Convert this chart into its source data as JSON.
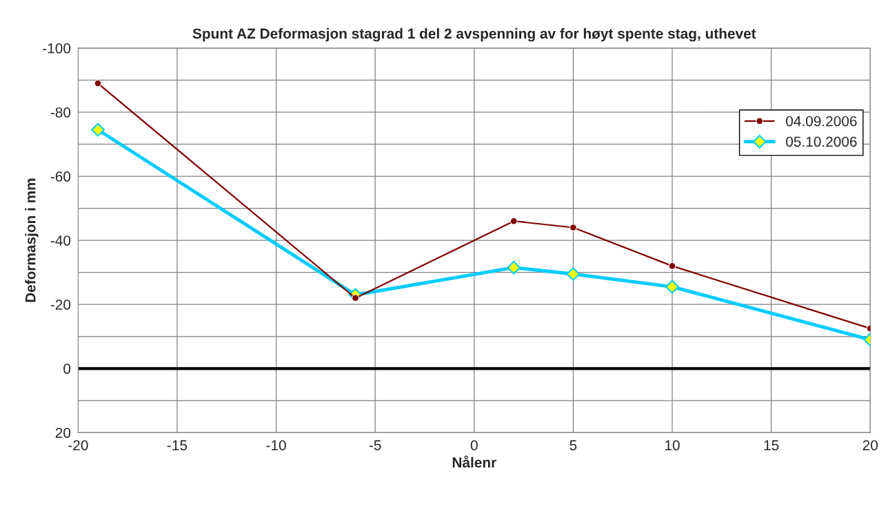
{
  "chart_data": {
    "type": "line",
    "title": "Spunt AZ Deformasjon stagrad 1 del 2 avspenning av for høyt spente stag, uthevet",
    "xlabel": "Nålenr",
    "ylabel": "Deformasjon i mm",
    "x": [
      -19,
      -6,
      2,
      5,
      10,
      20
    ],
    "series": [
      {
        "name": "04.09.2006",
        "color": "#800000",
        "values": [
          -89,
          -22,
          -46,
          -44,
          -32,
          -12.5
        ],
        "marker": "circle"
      },
      {
        "name": "05.10.2006",
        "color": "#00ccff",
        "values": [
          -74.5,
          -23,
          -31.5,
          -29.5,
          -25.5,
          -9
        ],
        "marker": "diamond"
      }
    ],
    "xlim": [
      -20,
      20
    ],
    "xticks": [
      -20,
      -15,
      -10,
      -5,
      0,
      5,
      10,
      15,
      20
    ],
    "ylim": [
      20,
      -100
    ],
    "yticks": [
      20,
      {
        "value": 10,
        "label": null
      },
      0,
      {
        "value": -10,
        "label": null
      },
      -20,
      {
        "value": -30,
        "label": null
      },
      -40,
      {
        "value": -50,
        "label": null
      },
      -60,
      {
        "value": -70,
        "label": null
      },
      -80,
      {
        "value": -90,
        "label": null
      },
      -100
    ],
    "ref_lines": [
      {
        "axis": "y",
        "value": 0,
        "color": "#000000"
      }
    ],
    "grid": true,
    "legend": "right"
  }
}
